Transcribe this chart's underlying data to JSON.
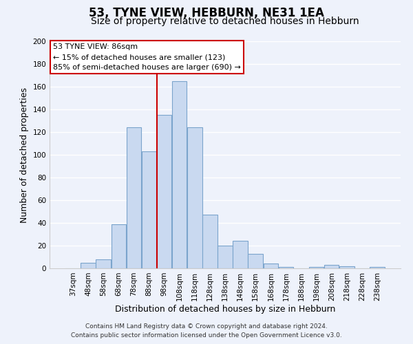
{
  "title": "53, TYNE VIEW, HEBBURN, NE31 1EA",
  "subtitle": "Size of property relative to detached houses in Hebburn",
  "xlabel": "Distribution of detached houses by size in Hebburn",
  "ylabel": "Number of detached properties",
  "bar_labels": [
    "37sqm",
    "48sqm",
    "58sqm",
    "68sqm",
    "78sqm",
    "88sqm",
    "98sqm",
    "108sqm",
    "118sqm",
    "128sqm",
    "138sqm",
    "148sqm",
    "158sqm",
    "168sqm",
    "178sqm",
    "188sqm",
    "198sqm",
    "208sqm",
    "218sqm",
    "228sqm",
    "238sqm"
  ],
  "bar_values": [
    0,
    5,
    8,
    39,
    124,
    103,
    135,
    165,
    124,
    47,
    20,
    24,
    13,
    4,
    1,
    0,
    1,
    3,
    2,
    0,
    1
  ],
  "bar_color": "#c9d9f0",
  "bar_edgecolor": "#7ba4cc",
  "vline_x": 5.5,
  "vline_color": "#cc0000",
  "annotation_title": "53 TYNE VIEW: 86sqm",
  "annotation_line1": "← 15% of detached houses are smaller (123)",
  "annotation_line2": "85% of semi-detached houses are larger (690) →",
  "annotation_box_color": "white",
  "annotation_box_edgecolor": "#cc0000",
  "ylim": [
    0,
    200
  ],
  "yticks": [
    0,
    20,
    40,
    60,
    80,
    100,
    120,
    140,
    160,
    180,
    200
  ],
  "footnote1": "Contains HM Land Registry data © Crown copyright and database right 2024.",
  "footnote2": "Contains public sector information licensed under the Open Government Licence v3.0.",
  "background_color": "#eef2fb",
  "grid_color": "#ffffff",
  "title_fontsize": 12,
  "subtitle_fontsize": 10,
  "label_fontsize": 9,
  "tick_fontsize": 7.5,
  "footnote_fontsize": 6.5
}
